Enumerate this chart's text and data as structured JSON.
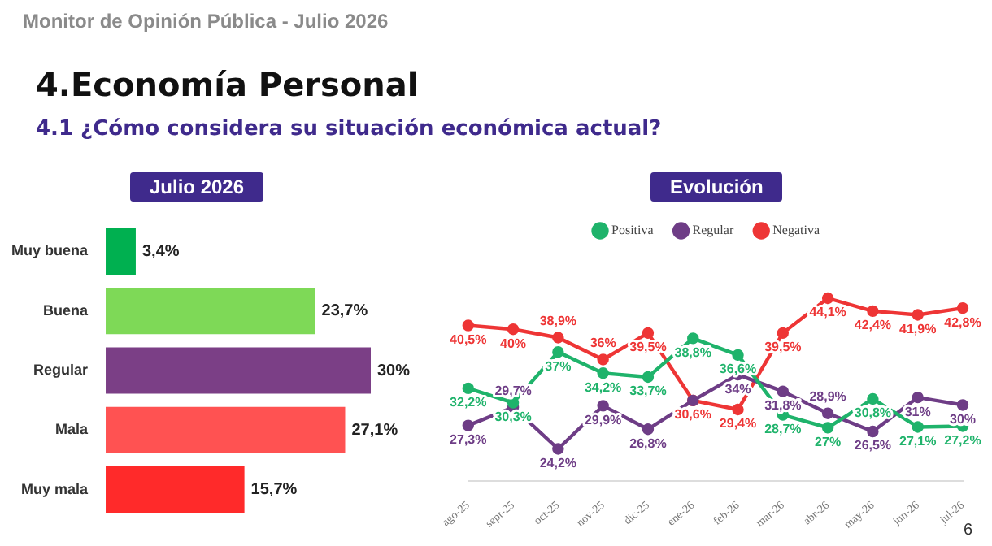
{
  "chart_data": [
    {
      "type": "bar",
      "title": "Julio 2026",
      "orientation": "horizontal",
      "tick_labels": "y",
      "legend": false,
      "annotations": [
        "Monitor de Opinión Pública - Julio 2026",
        "4.Economía Personal",
        "4.1 ¿Cómo considera su situación económica actual?"
      ],
      "categories": [
        "Muy buena",
        "Buena",
        "Regular",
        "Mala",
        "Muy mala"
      ],
      "values": [
        3.4,
        23.7,
        30,
        27.1,
        15.7
      ],
      "value_labels": [
        "3,4%",
        "23,7%",
        "30%",
        "27,1%",
        "15,7%"
      ],
      "colors": [
        "#00b050",
        "#7ed957",
        "#7b3f86",
        "#ff5252",
        "#ff2a2a"
      ]
    },
    {
      "type": "line",
      "title": "Evolución",
      "tick_labels": "x",
      "legend": "top",
      "marker": "circle",
      "line_style": "solid",
      "annotations": [
        "6"
      ],
      "categories": [
        "ago-25",
        "sept-25",
        "oct-25",
        "nov-25",
        "dic-25",
        "ene-26",
        "feb-26",
        "mar-26",
        "abr-26",
        "may-26",
        "jun-26",
        "jul-26"
      ],
      "series": [
        {
          "name": "Positiva",
          "color": "#1fb36b",
          "values": [
            32.2,
            30.3,
            37,
            34.2,
            33.7,
            38.8,
            36.6,
            28.7,
            27,
            30.8,
            27.1,
            27.2
          ],
          "value_labels": [
            "32,2%",
            "30,3%",
            "37%",
            "34,2%",
            "33,7%",
            "38,8%",
            "36,6%",
            "28,7%",
            "27%",
            "30,8%",
            "27,1%",
            "27,2%"
          ]
        },
        {
          "name": "Regular",
          "color": "#6e3d86",
          "values": [
            27.3,
            29.7,
            24.2,
            29.9,
            26.8,
            30.6,
            34,
            31.8,
            28.9,
            26.5,
            31,
            30
          ],
          "value_labels": [
            "27,3%",
            "29,7%",
            "24,2%",
            "29,9%",
            "26,8%",
            null,
            "34%",
            "31,8%",
            "28,9%",
            "26,5%",
            "31%",
            "30%"
          ]
        },
        {
          "name": "Negativa",
          "color": "#ee3535",
          "values": [
            40.5,
            40,
            38.9,
            36,
            39.5,
            30.6,
            29.4,
            39.5,
            44.1,
            42.4,
            41.9,
            42.8
          ],
          "value_labels": [
            "40,5%",
            "40%",
            "38,9%",
            "36%",
            "39,5%",
            "30,6%",
            "29,4%",
            "39,5%",
            "44,1%",
            "42,4%",
            "41,9%",
            "42,8%"
          ]
        }
      ]
    }
  ]
}
